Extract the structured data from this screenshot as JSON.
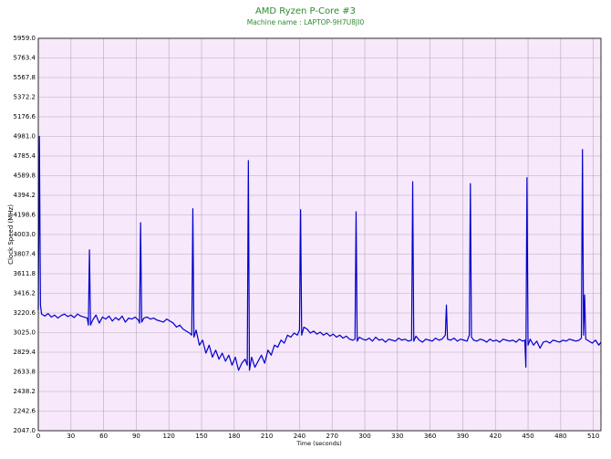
{
  "chart_data": {
    "type": "line",
    "title": "AMD Ryzen P-Core #3",
    "subtitle": "Machine name : LAPTOP-9H7U8JI0",
    "x_label": "Time (seconds)",
    "y_label": "Clock Speed (MHz)",
    "color": "#0000cc",
    "title_color": "#2e8b2e",
    "plot_background": "#f7e8fb",
    "grid": true,
    "xlim": [
      0,
      517
    ],
    "ylim": [
      2047,
      5959
    ],
    "xticks": [
      0,
      30,
      60,
      90,
      120,
      150,
      180,
      210,
      240,
      270,
      300,
      330,
      360,
      390,
      420,
      450,
      480,
      510
    ],
    "yticks": [
      {
        "value": 2047,
        "label": "2047.0"
      },
      2242.6,
      2438.2,
      2633.8,
      2829.4,
      {
        "value": 3025,
        "label": "3025.0"
      },
      3220.6,
      3416.2,
      3611.8,
      3807.4,
      {
        "value": 4003,
        "label": "4003.0"
      },
      4198.6,
      4394.2,
      4589.8,
      4785.4,
      {
        "value": 4981,
        "label": "4981.0"
      },
      5176.6,
      5372.2,
      5567.8,
      5763.4,
      {
        "value": 5959,
        "label": "5959.0"
      }
    ],
    "x": [
      0,
      1,
      2,
      3,
      6,
      9,
      12,
      15,
      18,
      21,
      24,
      27,
      30,
      33,
      36,
      39,
      42,
      45,
      46,
      47,
      48,
      50,
      53,
      56,
      59,
      62,
      65,
      68,
      71,
      74,
      77,
      80,
      83,
      86,
      89,
      92,
      93,
      94,
      95,
      97,
      100,
      103,
      106,
      109,
      112,
      115,
      118,
      121,
      124,
      127,
      130,
      133,
      136,
      139,
      141,
      142,
      143,
      145,
      148,
      151,
      154,
      157,
      160,
      163,
      166,
      169,
      172,
      175,
      178,
      181,
      184,
      187,
      190,
      192,
      193,
      194,
      196,
      199,
      202,
      205,
      208,
      211,
      214,
      217,
      220,
      223,
      226,
      229,
      232,
      235,
      238,
      240,
      241,
      242,
      244,
      247,
      250,
      253,
      256,
      259,
      262,
      265,
      268,
      271,
      274,
      277,
      280,
      283,
      286,
      289,
      291,
      292,
      293,
      295,
      298,
      301,
      304,
      307,
      310,
      313,
      316,
      319,
      322,
      325,
      328,
      331,
      334,
      337,
      340,
      343,
      344,
      345,
      347,
      350,
      353,
      356,
      359,
      362,
      365,
      368,
      371,
      374,
      375,
      376,
      379,
      382,
      385,
      388,
      391,
      394,
      396,
      397,
      398,
      400,
      403,
      406,
      409,
      412,
      415,
      418,
      421,
      424,
      427,
      430,
      433,
      436,
      439,
      442,
      445,
      447,
      448,
      449,
      450,
      452,
      455,
      458,
      461,
      464,
      467,
      470,
      473,
      476,
      479,
      482,
      485,
      488,
      491,
      494,
      497,
      499,
      500,
      501,
      502,
      503,
      506,
      509,
      512,
      515,
      517
    ],
    "values": [
      3250,
      4981,
      3300,
      3210,
      3190,
      3215,
      3180,
      3200,
      3170,
      3195,
      3210,
      3185,
      3200,
      3175,
      3210,
      3190,
      3180,
      3170,
      3100,
      3850,
      3100,
      3150,
      3200,
      3120,
      3180,
      3160,
      3190,
      3140,
      3175,
      3150,
      3190,
      3130,
      3170,
      3160,
      3180,
      3150,
      3120,
      4120,
      3130,
      3170,
      3180,
      3160,
      3170,
      3150,
      3140,
      3130,
      3160,
      3140,
      3120,
      3080,
      3100,
      3060,
      3040,
      3020,
      3000,
      4260,
      2980,
      3050,
      2900,
      2950,
      2820,
      2900,
      2780,
      2850,
      2760,
      2820,
      2740,
      2800,
      2700,
      2780,
      2650,
      2720,
      2760,
      2700,
      4740,
      2650,
      2780,
      2680,
      2740,
      2800,
      2720,
      2850,
      2800,
      2900,
      2880,
      2950,
      2920,
      3000,
      2980,
      3020,
      3000,
      3050,
      4250,
      3000,
      3080,
      3060,
      3020,
      3040,
      3010,
      3030,
      3000,
      3020,
      2990,
      3010,
      2980,
      3000,
      2970,
      2990,
      2960,
      2950,
      2960,
      4230,
      2940,
      2980,
      2960,
      2950,
      2970,
      2940,
      2980,
      2950,
      2960,
      2930,
      2960,
      2950,
      2940,
      2970,
      2950,
      2960,
      2940,
      2950,
      4530,
      2940,
      2990,
      2950,
      2930,
      2960,
      2950,
      2940,
      2970,
      2950,
      2960,
      3000,
      3300,
      2960,
      2950,
      2970,
      2940,
      2960,
      2950,
      2940,
      3000,
      4510,
      2980,
      2950,
      2940,
      2960,
      2950,
      2930,
      2960,
      2940,
      2950,
      2930,
      2960,
      2950,
      2940,
      2950,
      2930,
      2960,
      2940,
      2950,
      2680,
      4570,
      2900,
      2960,
      2900,
      2940,
      2870,
      2930,
      2940,
      2920,
      2950,
      2940,
      2930,
      2950,
      2940,
      2960,
      2950,
      2940,
      2950,
      2970,
      4850,
      3000,
      3400,
      2960,
      2940,
      2920,
      2950,
      2900,
      2930
    ]
  }
}
